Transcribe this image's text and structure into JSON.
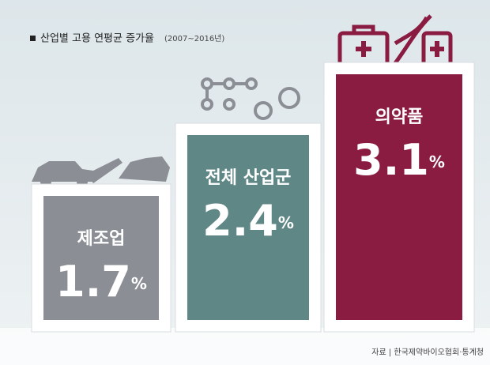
{
  "chart_data": {
    "type": "bar",
    "title": "산업별 고용 연평균 증가율",
    "subtitle": "(2007~2016년)",
    "categories": [
      "제조업",
      "전체 산업군",
      "의약품"
    ],
    "values": [
      1.7,
      2.4,
      3.1
    ],
    "value_labels": [
      "1.7%",
      "2.4%",
      "3.1%"
    ],
    "colors": [
      "#8b8e95",
      "#5f8785",
      "#8a1c41"
    ],
    "source": "자료 | 한국제약바이오협회·통계청"
  }
}
